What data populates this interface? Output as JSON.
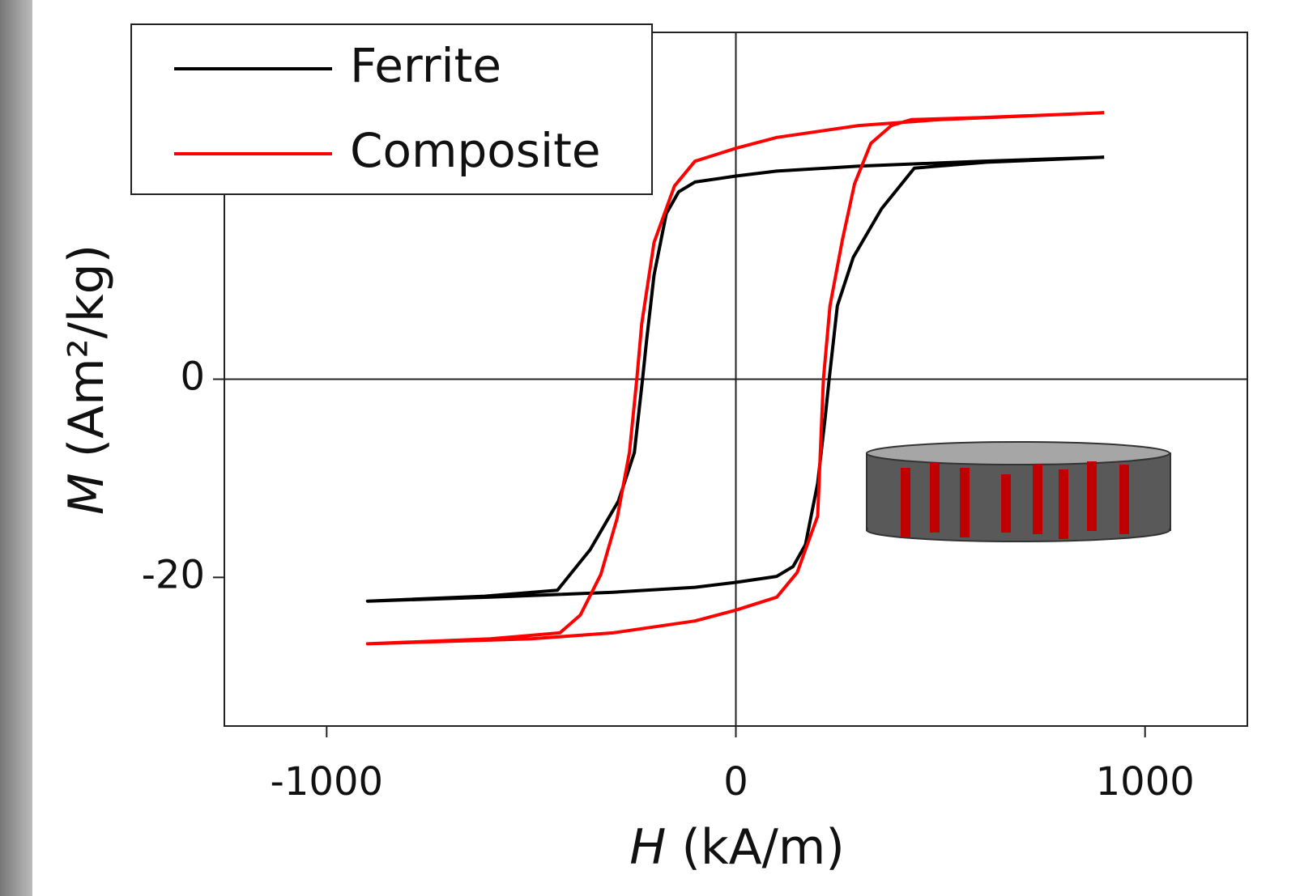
{
  "chart_data": {
    "type": "line",
    "xlabel_symbol": "H",
    "xlabel_unit": "(kA/m)",
    "ylabel_symbol": "M",
    "ylabel_unit": "(Am²/kg)",
    "xlim": [
      -1250,
      1250
    ],
    "xticks": [
      -1000,
      0,
      1000
    ],
    "ylim": [
      -35,
      35
    ],
    "yticks": [
      -20,
      0
    ],
    "zero_lines": true,
    "legend": "upper left",
    "series": [
      {
        "name": "Ferrite",
        "color": "#000000",
        "x": [
          900,
          600,
          300,
          100,
          0,
          -100,
          -140,
          -170,
          -200,
          -218,
          -228,
          -248,
          -287,
          -356,
          -436,
          -614,
          -900,
          -600,
          -300,
          -100,
          0,
          100,
          140,
          170,
          200,
          218,
          228,
          248,
          287,
          356,
          436,
          614,
          900
        ],
        "values": [
          22.4,
          22.0,
          21.5,
          21.0,
          20.5,
          19.9,
          18.9,
          16.7,
          10.5,
          4,
          0,
          -7.4,
          -12.3,
          -17.2,
          -21.3,
          -21.9,
          -22.4,
          -22.0,
          -21.5,
          -21.0,
          -20.5,
          -19.9,
          -18.9,
          -16.7,
          -10.5,
          -4,
          0,
          7.4,
          12.3,
          17.2,
          21.3,
          21.9,
          22.4
        ]
      },
      {
        "name": "Composite",
        "color": "#ff0000",
        "x": [
          900,
          500,
          300,
          100,
          0,
          -100,
          -150,
          -200,
          -230,
          -242,
          -260,
          -290,
          -330,
          -380,
          -430,
          -600,
          -900,
          -500,
          -300,
          -100,
          0,
          100,
          150,
          200,
          214,
          230,
          260,
          290,
          330,
          380,
          430,
          600,
          900
        ],
        "values": [
          26.9,
          26.2,
          25.6,
          24.4,
          23.3,
          22.0,
          19.5,
          13.8,
          5.6,
          0,
          -7.4,
          -14.0,
          -19.7,
          -23.8,
          -25.6,
          -26.2,
          -26.7,
          -26.2,
          -25.6,
          -24.4,
          -23.3,
          -22.0,
          -19.5,
          -13.8,
          0,
          7.4,
          14.0,
          19.7,
          23.8,
          25.6,
          26.2,
          26.4,
          26.9
        ]
      }
    ]
  }
}
